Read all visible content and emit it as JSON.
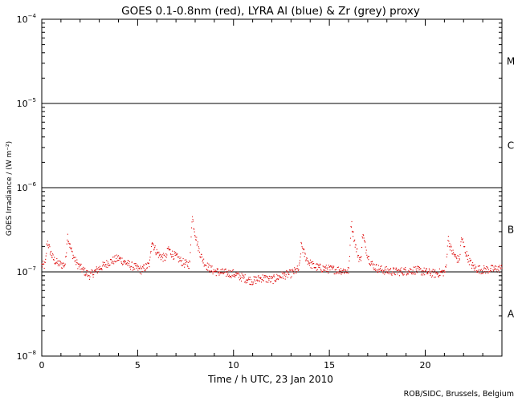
{
  "chart_data": {
    "type": "scatter",
    "title": "GOES 0.1-0.8nm (red), LYRA Al (blue) & Zr (grey) proxy",
    "xlabel": "Time / h UTC, 23 Jan 2010",
    "ylabel": "GOES Irradiance / (W m⁻²)",
    "xlim": [
      0,
      24
    ],
    "ylim": [
      1e-08,
      0.0001
    ],
    "y_scale": "log",
    "x_ticks": [
      0,
      5,
      10,
      15,
      20
    ],
    "x_tick_labels": [
      "0",
      "5",
      "10",
      "15",
      "20"
    ],
    "y_ticks": [
      1e-08,
      1e-07,
      1e-06,
      1e-05,
      0.0001
    ],
    "flare_class_lines": [
      1e-07,
      1e-06,
      1e-05
    ],
    "flare_classes": [
      {
        "label": "A",
        "center": 3.16e-08
      },
      {
        "label": "B",
        "center": 3.16e-07
      },
      {
        "label": "C",
        "center": 3.16e-06
      },
      {
        "label": "M",
        "center": 3.16e-05
      }
    ],
    "series": [
      {
        "name": "GOES 0.1-0.8nm",
        "color": "#dd0000",
        "baseline_profile": {
          "x": [
            0,
            0.6,
            1.3,
            2.0,
            2.5,
            3.0,
            3.5,
            4.0,
            4.6,
            5.2,
            6.0,
            7.0,
            7.4,
            8.2,
            9.0,
            10.0,
            10.5,
            11.0,
            11.5,
            12.0,
            12.5,
            13.0,
            13.3,
            13.8,
            14.5,
            15.5,
            16.5,
            17.5,
            18.5,
            19.5,
            20.5,
            21.0,
            21.5,
            22.0,
            22.5,
            23.0,
            24.0
          ],
          "y": [
            1.2e-07,
            1.15e-07,
            1.2e-07,
            1.05e-07,
            9e-08,
            1.1e-07,
            1.3e-07,
            1.45e-07,
            1.2e-07,
            1.05e-07,
            1.4e-07,
            1.45e-07,
            1.25e-07,
            1.15e-07,
            1e-07,
            9.5e-08,
            8.5e-08,
            7.8e-08,
            8.5e-08,
            8e-08,
            9e-08,
            9.5e-08,
            1.05e-07,
            1.15e-07,
            1.1e-07,
            1.05e-07,
            1e-07,
            1.05e-07,
            1e-07,
            1.05e-07,
            9.5e-08,
            1e-07,
            1.3e-07,
            1.25e-07,
            1.05e-07,
            1.05e-07,
            1.1e-07
          ]
        },
        "peaks": [
          {
            "t": 0.3,
            "peak": 2.3e-07
          },
          {
            "t": 1.35,
            "peak": 2.7e-07
          },
          {
            "t": 5.75,
            "peak": 2.4e-07
          },
          {
            "t": 6.6,
            "peak": 1.9e-07
          },
          {
            "t": 7.85,
            "peak": 4.5e-07
          },
          {
            "t": 13.55,
            "peak": 2.1e-07
          },
          {
            "t": 16.15,
            "peak": 3.8e-07
          },
          {
            "t": 16.75,
            "peak": 2.6e-07
          },
          {
            "t": 21.2,
            "peak": 2.5e-07
          },
          {
            "t": 21.9,
            "peak": 2.5e-07
          }
        ]
      }
    ],
    "credit": "ROB/SIDC, Brussels, Belgium"
  }
}
